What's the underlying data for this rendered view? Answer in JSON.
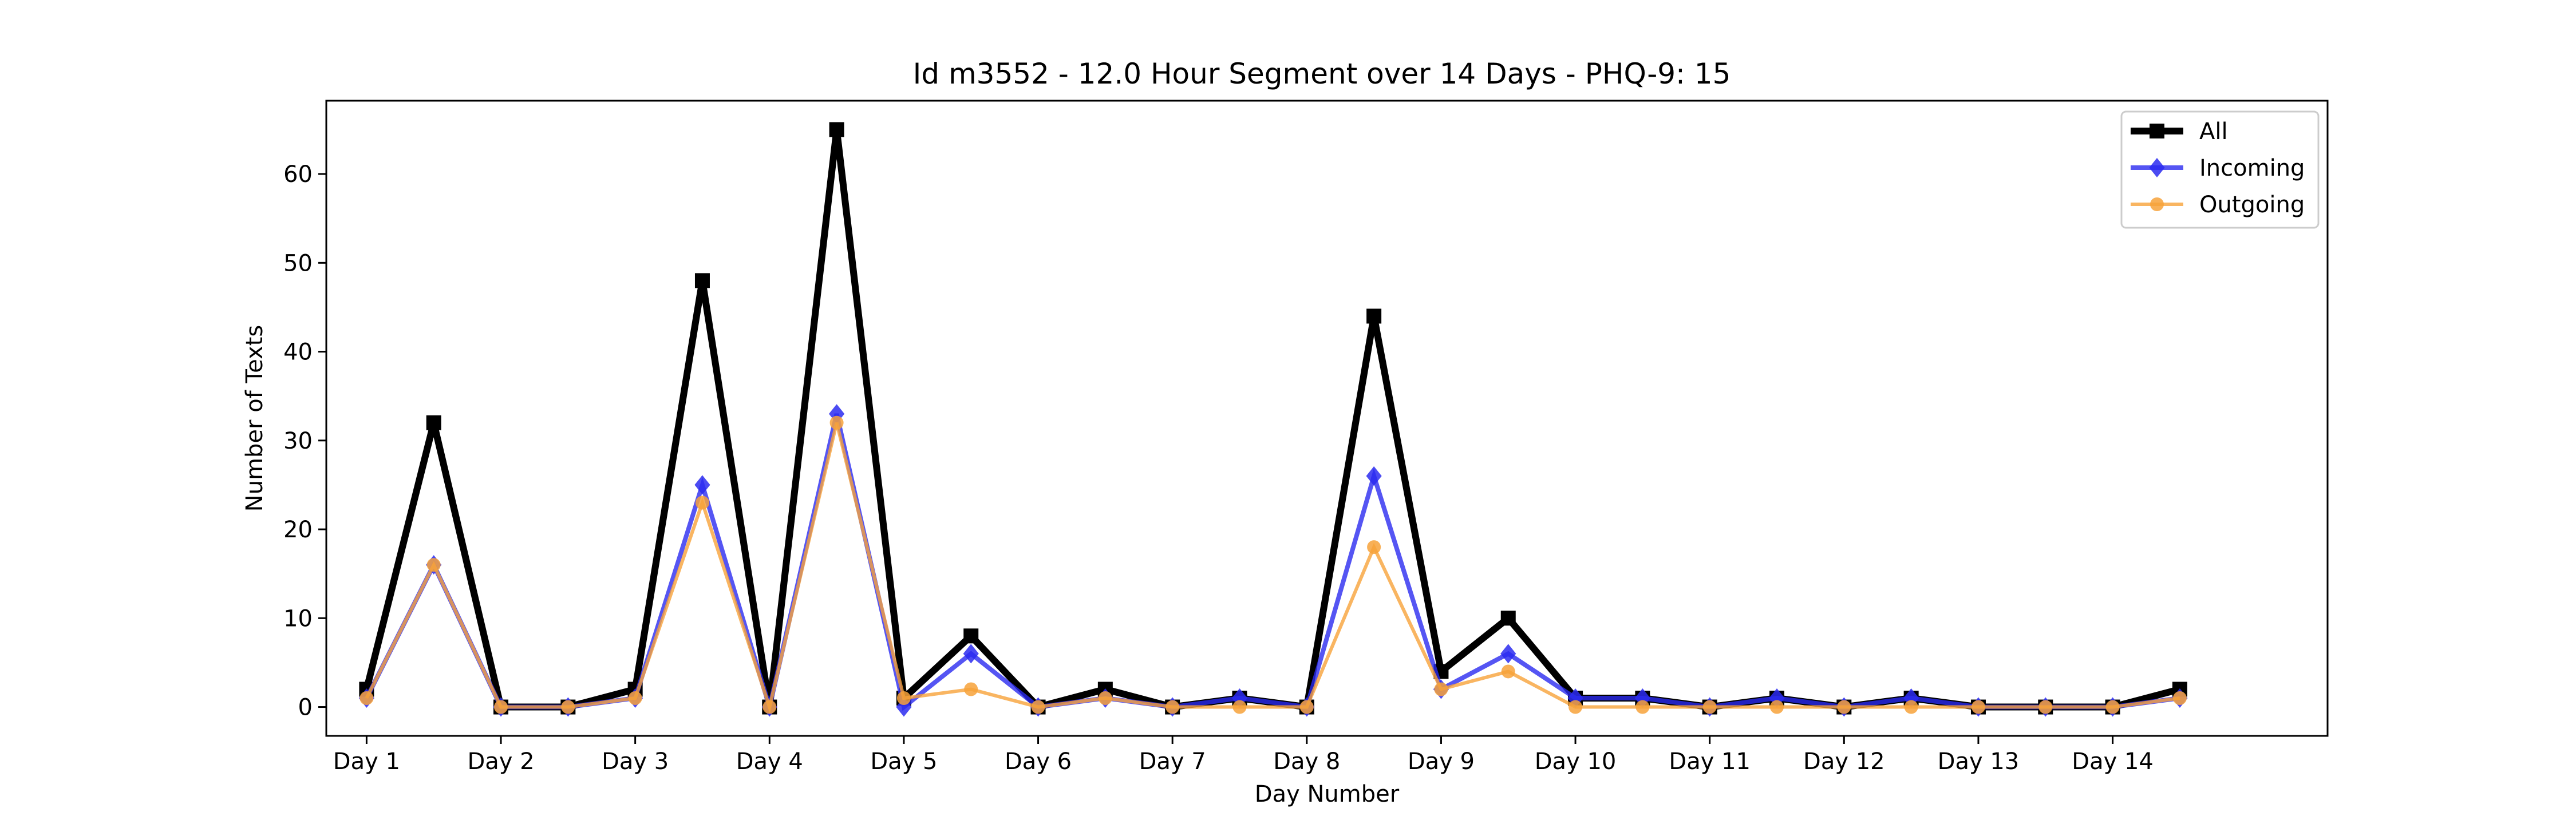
{
  "chart_data": {
    "type": "line",
    "title": "Id m3552 - 12.0 Hour Segment over 14 Days - PHQ-9: 15",
    "xlabel": "Day Number",
    "ylabel": "Number of Texts",
    "ylim": [
      -3.25,
      68.25
    ],
    "xlim": [
      -0.6,
      29.2
    ],
    "yticks": [
      0,
      10,
      20,
      30,
      40,
      50,
      60
    ],
    "xticks": [
      {
        "value": 0,
        "label": "Day 1"
      },
      {
        "value": 2,
        "label": "Day 2"
      },
      {
        "value": 4,
        "label": "Day 3"
      },
      {
        "value": 6,
        "label": "Day 4"
      },
      {
        "value": 8,
        "label": "Day 5"
      },
      {
        "value": 10,
        "label": "Day 6"
      },
      {
        "value": 12,
        "label": "Day 7"
      },
      {
        "value": 14,
        "label": "Day 8"
      },
      {
        "value": 16,
        "label": "Day 9"
      },
      {
        "value": 18,
        "label": "Day 10"
      },
      {
        "value": 20,
        "label": "Day 11"
      },
      {
        "value": 22,
        "label": "Day 12"
      },
      {
        "value": 24,
        "label": "Day 13"
      },
      {
        "value": 26,
        "label": "Day 14"
      }
    ],
    "grid": false,
    "legend_position": "top-right",
    "x": [
      0,
      1,
      2,
      3,
      4,
      5,
      6,
      7,
      8,
      9,
      10,
      11,
      12,
      13,
      14,
      15,
      16,
      17,
      18,
      19,
      20,
      21,
      22,
      23,
      24,
      25,
      26,
      27
    ],
    "series": [
      {
        "name": "All",
        "color": "#000000",
        "marker": "square",
        "values": [
          2,
          32,
          0,
          0,
          2,
          48,
          0,
          65,
          1,
          8,
          0,
          2,
          0,
          1,
          0,
          44,
          4,
          10,
          1,
          1,
          0,
          1,
          0,
          1,
          0,
          0,
          0,
          2
        ]
      },
      {
        "name": "Incoming",
        "color": "#2b2bf0",
        "marker": "diamond",
        "values": [
          1,
          16,
          0,
          0,
          1,
          25,
          0,
          33,
          0,
          6,
          0,
          1,
          0,
          1,
          0,
          26,
          2,
          6,
          1,
          1,
          0,
          1,
          0,
          1,
          0,
          0,
          0,
          1
        ]
      },
      {
        "name": "Outgoing",
        "color": "#f7a23a",
        "marker": "circle",
        "values": [
          1,
          16,
          0,
          0,
          1,
          23,
          0,
          32,
          1,
          2,
          0,
          1,
          0,
          0,
          0,
          18,
          2,
          4,
          0,
          0,
          0,
          0,
          0,
          0,
          0,
          0,
          0,
          1
        ]
      }
    ]
  }
}
